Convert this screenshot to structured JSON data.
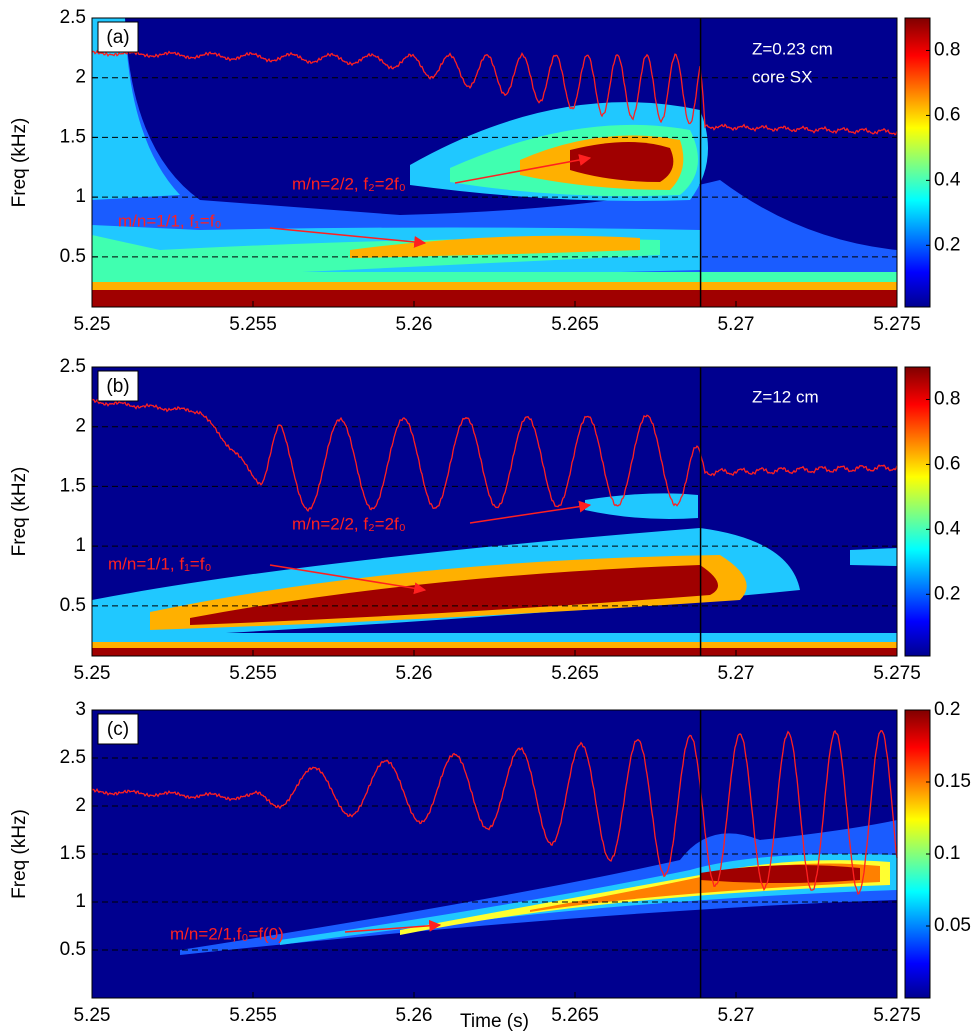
{
  "chart_data": [
    {
      "type": "heatmap",
      "panel_label": "(a)",
      "ylabel": "Freq (kHz)",
      "xlim": [
        5.25,
        5.275
      ],
      "xticks": [
        5.25,
        5.255,
        5.26,
        5.265,
        5.27,
        5.275
      ],
      "ylim": [
        0.08,
        2.5
      ],
      "yticks": [
        0.5,
        1,
        1.5,
        2,
        2.5
      ],
      "grid": true,
      "colorbar": {
        "lim": [
          0.01,
          0.9
        ],
        "ticks": [
          0.2,
          0.4,
          0.6,
          0.8
        ]
      },
      "vline": 5.2689,
      "annotations": [
        "Z=0.23 cm",
        "core SX",
        "m/n=2/2, f₂=2f₀",
        "m/n=1/1, f₁=f₀"
      ]
    },
    {
      "type": "heatmap",
      "panel_label": "(b)",
      "ylabel": "Freq (kHz)",
      "xlim": [
        5.25,
        5.275
      ],
      "xticks": [
        5.25,
        5.255,
        5.26,
        5.265,
        5.27,
        5.275
      ],
      "ylim": [
        0.08,
        2.5
      ],
      "yticks": [
        0.5,
        1,
        1.5,
        2,
        2.5
      ],
      "grid": true,
      "colorbar": {
        "lim": [
          0.01,
          0.9
        ],
        "ticks": [
          0.2,
          0.4,
          0.6,
          0.8
        ]
      },
      "vline": 5.2689,
      "annotations": [
        "Z=12 cm",
        "m/n=2/2, f₂=2f₀",
        "m/n=1/1, f₁=f₀"
      ]
    },
    {
      "type": "heatmap",
      "panel_label": "(c)",
      "ylabel": "Freq (kHz)",
      "xlabel": "Time (s)",
      "xlim": [
        5.25,
        5.275
      ],
      "xticks": [
        5.25,
        5.255,
        5.26,
        5.265,
        5.27,
        5.275
      ],
      "ylim": [
        0,
        3
      ],
      "yticks": [
        0.5,
        1,
        1.5,
        2,
        2.5,
        3
      ],
      "grid": true,
      "colorbar": {
        "lim": [
          0,
          0.2
        ],
        "ticks": [
          0.05,
          0.1,
          0.15,
          0.2
        ]
      },
      "vline": 5.2689,
      "annotations": [
        "m/n=2/1,f₀=f(0)"
      ]
    }
  ]
}
